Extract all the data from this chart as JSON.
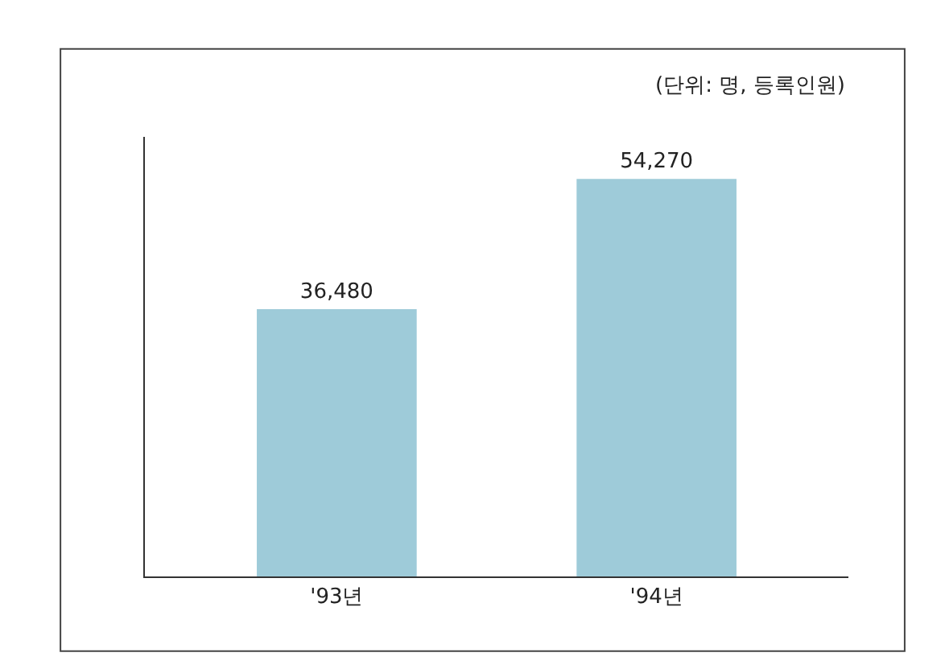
{
  "chart_data": {
    "type": "bar",
    "categories": [
      "'93년",
      "'94년"
    ],
    "values": [
      36480,
      54270
    ],
    "value_labels": [
      "36,480",
      "54,270"
    ],
    "color": "#9ecbd9",
    "ylim": [
      0,
      60000
    ],
    "tick_labels": "x",
    "legend": false,
    "annotations": [
      "(단위: 명, 등록인원)"
    ]
  }
}
